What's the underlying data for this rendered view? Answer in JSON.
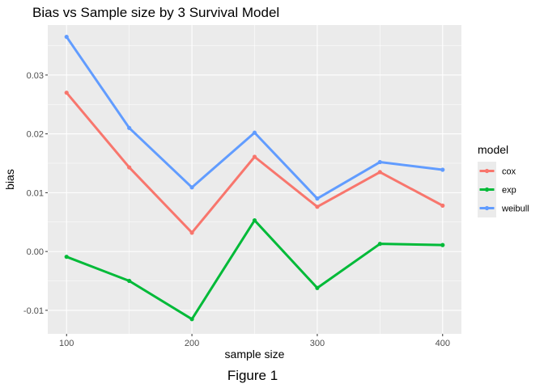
{
  "chart_data": {
    "type": "line",
    "title": "Bias vs Sample size by 3 Survival Model",
    "xlabel": "sample size",
    "ylabel": "bias",
    "caption": "Figure 1",
    "x": [
      100,
      150,
      200,
      250,
      300,
      350,
      400
    ],
    "xlim": [
      85,
      415
    ],
    "ylim": [
      -0.014,
      0.0385
    ],
    "x_ticks": [
      100,
      200,
      300,
      400
    ],
    "y_ticks": [
      -0.01,
      0.0,
      0.01,
      0.02,
      0.03
    ],
    "y_tick_labels": [
      "-0.01",
      "0.00",
      "0.01",
      "0.02",
      "0.03"
    ],
    "grid": true,
    "legend": {
      "title": "model",
      "position": "right"
    },
    "series": [
      {
        "name": "cox",
        "color": "#F8766D",
        "values": [
          0.027,
          0.0143,
          0.0032,
          0.0161,
          0.0076,
          0.0135,
          0.0078
        ]
      },
      {
        "name": "exp",
        "color": "#00BA38",
        "values": [
          -0.0009,
          -0.005,
          -0.0115,
          0.0053,
          -0.0062,
          0.0013,
          0.0011
        ]
      },
      {
        "name": "weibull",
        "color": "#619CFF",
        "values": [
          0.0365,
          0.021,
          0.0109,
          0.0202,
          0.009,
          0.0152,
          0.0139
        ]
      }
    ]
  }
}
